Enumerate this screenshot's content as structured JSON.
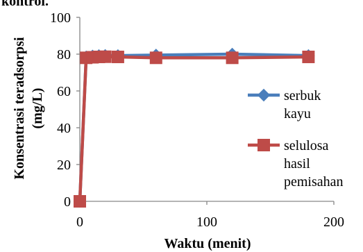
{
  "clipped_text": "kontrol.",
  "chart_data": {
    "type": "line",
    "xlabel": "Waktu (menit)",
    "ylabel_line1": "Konsentrasi teradsorpsi",
    "ylabel_line2": "(mg/L)",
    "xlim": [
      0,
      200
    ],
    "ylim": [
      0,
      100
    ],
    "xticks": [
      0,
      100,
      200
    ],
    "yticks": [
      0,
      20,
      40,
      60,
      80,
      100
    ],
    "grid": false,
    "legend_position": "right",
    "series": [
      {
        "name_lines": [
          "serbuk",
          "kayu"
        ],
        "color": "#4A7EBB",
        "marker": "diamond",
        "x": [
          0,
          5,
          10,
          15,
          20,
          30,
          60,
          120,
          180
        ],
        "y": [
          0,
          78.5,
          79,
          79.2,
          79.3,
          79.2,
          79.5,
          80,
          79.2
        ]
      },
      {
        "name_lines": [
          "selulosa",
          "hasil",
          "pemisahan"
        ],
        "color": "#BE4B48",
        "marker": "square",
        "x": [
          0,
          5,
          10,
          15,
          20,
          30,
          60,
          120,
          180
        ],
        "y": [
          0,
          78,
          78.3,
          78.5,
          78.6,
          78.5,
          78,
          78,
          78.5
        ]
      }
    ]
  }
}
